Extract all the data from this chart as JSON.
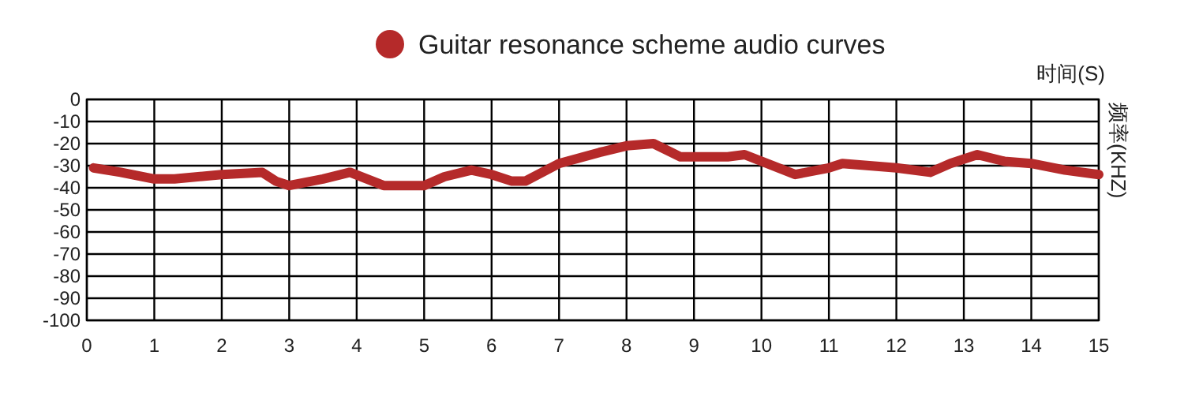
{
  "chart_data": {
    "type": "line",
    "x": [
      0.1,
      0.5,
      1.0,
      1.3,
      2.0,
      2.6,
      2.8,
      3.0,
      3.5,
      3.9,
      4.4,
      5.0,
      5.3,
      5.7,
      6.0,
      6.3,
      6.5,
      7.0,
      7.6,
      8.0,
      8.4,
      8.8,
      9.5,
      9.75,
      10.5,
      11.0,
      11.2,
      12.0,
      12.5,
      12.8,
      13.2,
      13.6,
      14.0,
      14.5,
      15.0
    ],
    "series": [
      {
        "name": "Guitar resonance scheme audio curves",
        "color": "#b52a2a",
        "values": [
          -31,
          -33,
          -36,
          -36,
          -34,
          -33,
          -37,
          -39,
          -36,
          -33,
          -39,
          -39,
          -35,
          -32,
          -34,
          -37,
          -37,
          -29,
          -24,
          -21,
          -20,
          -26,
          -26,
          -25,
          -34,
          -31,
          -29,
          -31,
          -33,
          -29,
          -25,
          -28,
          -29,
          -32,
          -34
        ]
      }
    ],
    "xlim": [
      0,
      15
    ],
    "xticks": [
      0,
      1,
      2,
      3,
      4,
      5,
      6,
      7,
      8,
      9,
      10,
      11,
      12,
      13,
      14,
      15
    ],
    "ylim": [
      -100,
      0
    ],
    "yticks": [
      0,
      -10,
      -20,
      -30,
      -40,
      -50,
      -60,
      -70,
      -80,
      -90,
      -100
    ],
    "xlabel": "时间(S)",
    "ylabel": "频率(KHZ)",
    "grid": true,
    "legend": "top",
    "line_style": "solid"
  }
}
